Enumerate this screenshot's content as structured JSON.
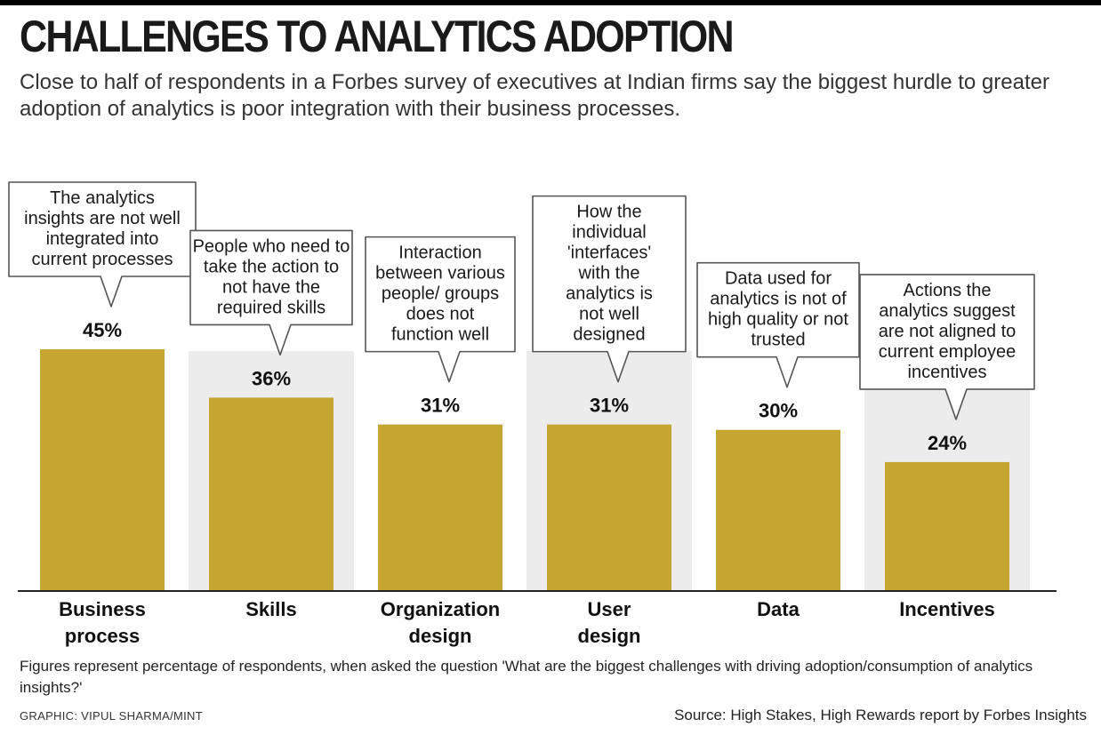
{
  "header": {
    "title": "CHALLENGES TO ANALYTICS ADOPTION",
    "subtitle": "Close to half of respondents in a Forbes survey of executives at Indian firms say the biggest hurdle to greater adoption of analytics is poor integration with their business processes."
  },
  "chart_data": {
    "type": "bar",
    "categories": [
      "Business process",
      "Skills",
      "Organization design",
      "User design",
      "Data",
      "Incentives"
    ],
    "values": [
      45,
      36,
      31,
      31,
      30,
      24
    ],
    "value_labels": [
      "45%",
      "36%",
      "31%",
      "31%",
      "30%",
      "24%"
    ],
    "callouts": [
      "The analytics insights are not well integrated into current processes",
      "People who need to take the action to not have the required skills",
      "Interaction between various people/ groups does not function well",
      "How the individual 'interfaces' with the analytics is not well designed",
      "Data used for analytics is not of high quality or not trusted",
      "Actions the analytics suggest are not aligned to current employee incentives"
    ],
    "ylim": [
      0,
      45
    ],
    "grid": false,
    "colors": {
      "bar": "#c4a631",
      "band": "#ececec",
      "baseline": "#222222"
    }
  },
  "footer": {
    "note": "Figures represent percentage of respondents, when asked the question 'What are the biggest challenges with driving adoption/consumption of analytics insights?'",
    "credit": "GRAPHIC: VIPUL SHARMA/MINT",
    "source": "Source: High Stakes, High Rewards report by Forbes Insights"
  }
}
